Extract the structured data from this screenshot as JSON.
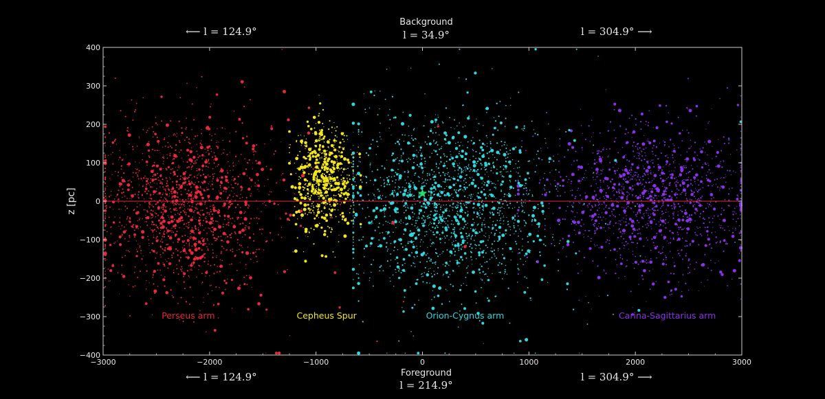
{
  "header": {
    "background_label": "Background",
    "background_l": "l = 34.9°",
    "top_left": "⟵   l = 124.9°",
    "top_right": "l = 304.9°  ⟶",
    "foreground_label": "Foreground",
    "foreground_l": "l = 214.9°",
    "bottom_left": "⟵   l = 124.9°",
    "bottom_right": "l = 304.9°  ⟶"
  },
  "colors": {
    "perseus": "#e8283c",
    "cepheus": "#f2e61a",
    "orion": "#2fd6dc",
    "carina": "#8a32e8",
    "sun": "#22e06a",
    "frame": "#cfcfcf"
  },
  "chart_data": {
    "type": "scatter",
    "xlim": [
      -3000,
      3000
    ],
    "ylim": [
      -400,
      400
    ],
    "ylabel": "z [pc]",
    "x_ticks": [
      "−3000",
      "−2000",
      "−1000",
      "0",
      "1000",
      "2000",
      "3000"
    ],
    "y_ticks": [
      "400",
      "300",
      "200",
      "100",
      "0",
      "−100",
      "−200",
      "−300",
      "−400"
    ],
    "midplane_z": 0,
    "sun_position": {
      "x": 0,
      "z": 20
    },
    "series": [
      {
        "name": "Perseus arm",
        "color": "#e8283c",
        "label_x": -2200,
        "label_z": -305,
        "density_center": {
          "x": -2300,
          "z": -10
        },
        "extent": {
          "x": [
            -3000,
            -1500
          ],
          "z": [
            -250,
            250
          ]
        }
      },
      {
        "name": "Cepheus Spur",
        "color": "#f2e61a",
        "label_x": -900,
        "label_z": -305,
        "density_center": {
          "x": -950,
          "z": 60
        },
        "extent": {
          "x": [
            -1250,
            -600
          ],
          "z": [
            -130,
            190
          ]
        }
      },
      {
        "name": "Orion-Cygnus arm",
        "color": "#2fd6dc",
        "label_x": 400,
        "label_z": -305,
        "density_center": {
          "x": 200,
          "z": 0
        },
        "extent": {
          "x": [
            -600,
            1500
          ],
          "z": [
            -250,
            250
          ]
        }
      },
      {
        "name": "Carina-Sagittarius arm",
        "color": "#8a32e8",
        "label_x": 2300,
        "label_z": -305,
        "density_center": {
          "x": 2200,
          "z": 10
        },
        "extent": {
          "x": [
            1000,
            3000
          ],
          "z": [
            -200,
            200
          ]
        }
      }
    ]
  }
}
